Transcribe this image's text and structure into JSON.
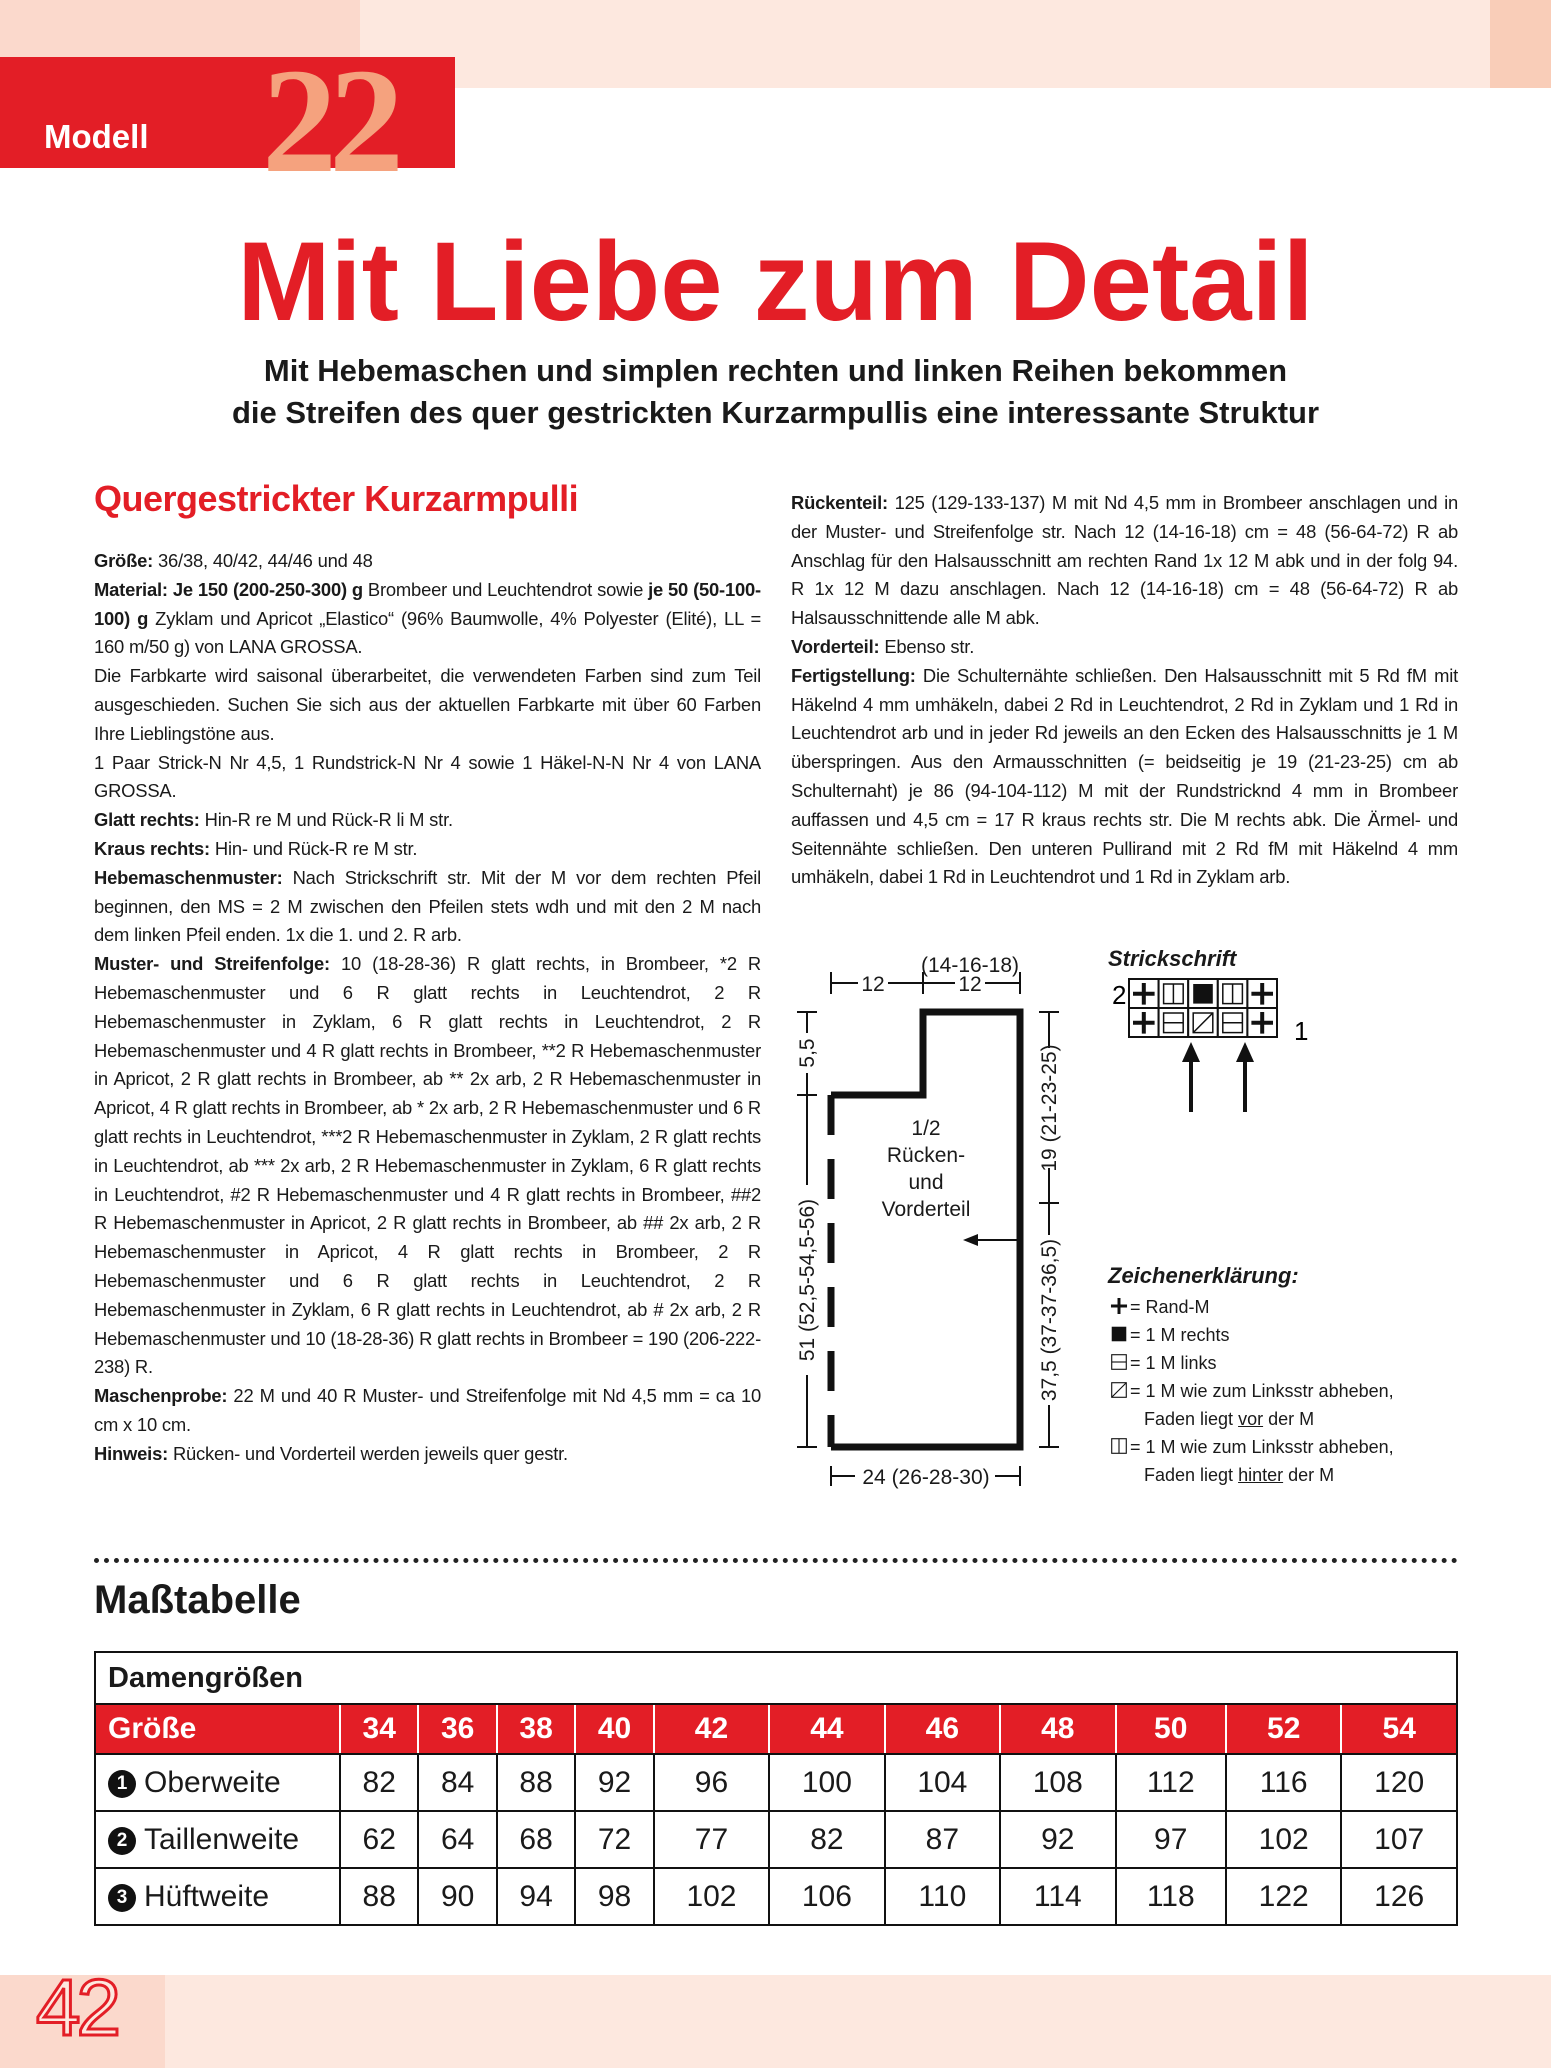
{
  "header": {
    "modell_label": "Modell",
    "modell_number": "22"
  },
  "title": "Mit Liebe zum Detail",
  "subtitle": [
    "Mit Hebemaschen und simplen rechten und linken Reihen bekommen",
    "die Streifen des quer gestrickten Kurzarmpullis eine interessante Struktur"
  ],
  "section_heading": "Quergestrickter Kurzarmpulli",
  "left_column": [
    [
      {
        "b": true,
        "t": "Größe:"
      },
      {
        "b": false,
        "t": " 36/38, 40/42, 44/46 und 48"
      }
    ],
    [
      {
        "b": true,
        "t": "Material: Je 150 (200-250-300) g"
      },
      {
        "b": false,
        "t": " Brombeer und Leuchtendrot sowie "
      },
      {
        "b": true,
        "t": "je 50 (50-100-100) g"
      },
      {
        "b": false,
        "t": " Zyklam und Apricot „Elastico“ (96% Baumwolle, 4% Polyester (Elité), LL = 160 m/50 g) von LANA GROSSA."
      }
    ],
    [
      {
        "b": false,
        "t": "Die Farbkarte wird saisonal überarbeitet, die verwendeten Farben sind zum Teil ausgeschieden. Suchen Sie sich aus der aktuellen Farbkarte mit über 60 Farben Ihre Lieblingstöne aus."
      }
    ],
    [
      {
        "b": false,
        "t": "1 Paar Strick-N Nr 4,5, 1 Rundstrick-N Nr 4 sowie 1 Häkel-N-N Nr 4 von LANA GROSSA."
      }
    ],
    [
      {
        "b": true,
        "t": "Glatt rechts:"
      },
      {
        "b": false,
        "t": " Hin-R re M und Rück-R li M str."
      }
    ],
    [
      {
        "b": true,
        "t": "Kraus rechts:"
      },
      {
        "b": false,
        "t": " Hin- und Rück-R re M str."
      }
    ],
    [
      {
        "b": true,
        "t": "Hebemaschenmuster:"
      },
      {
        "b": false,
        "t": " Nach Strickschrift str. Mit der M vor dem rechten Pfeil beginnen, den MS = 2 M zwischen den Pfeilen stets wdh und mit den 2 M nach dem linken Pfeil enden. 1x die 1. und 2. R arb."
      }
    ],
    [
      {
        "b": true,
        "t": "Muster- und Streifenfolge:"
      },
      {
        "b": false,
        "t": " 10 (18-28-36) R glatt rechts, in Brombeer, *2 R Hebemaschenmuster und 6 R glatt rechts in Leuchtendrot, 2 R Hebemaschenmuster in Zyklam, 6 R glatt rechts in Leuchtendrot, 2 R Hebemaschenmuster und 4 R glatt rechts in Brombeer, **2 R Hebemaschenmuster in Apricot, 2 R glatt rechts in Brombeer, ab ** 2x arb, 2 R Hebemaschenmuster in Apricot, 4 R glatt rechts in Brombeer, ab * 2x arb, 2 R Hebemaschenmuster und 6 R glatt rechts in Leuchtendrot, ***2 R Hebemaschenmuster in Zyklam, 2 R glatt rechts in Leuchtendrot, ab *** 2x arb, 2 R Hebemaschenmuster in Zyklam, 6 R glatt rechts in Leuchtendrot, #2 R Hebemaschenmuster und 4 R glatt rechts in Brombeer, ##2 R Hebemaschenmuster in Apricot, 2 R glatt rechts in Brombeer, ab ## 2x arb, 2 R Hebemaschenmuster in Apricot, 4 R glatt rechts in Brombeer, 2 R Hebemaschenmuster und 6 R glatt rechts in Leuchtendrot, 2 R Hebemaschenmuster in Zyklam, 6 R glatt rechts in Leuchtendrot, ab # 2x arb, 2 R Hebemaschenmuster und 10 (18-28-36) R glatt rechts in Brombeer = 190 (206-222-238) R."
      }
    ],
    [
      {
        "b": true,
        "t": "Maschenprobe:"
      },
      {
        "b": false,
        "t": " 22 M und 40 R Muster- und Streifenfolge mit Nd 4,5 mm = ca 10 cm x 10 cm."
      }
    ],
    [
      {
        "b": true,
        "t": "Hinweis:"
      },
      {
        "b": false,
        "t": " Rücken- und Vorderteil werden jeweils quer gestr."
      }
    ]
  ],
  "right_column": [
    [
      {
        "b": true,
        "t": "Rückenteil:"
      },
      {
        "b": false,
        "t": " 125 (129-133-137) M mit Nd 4,5 mm in Brombeer anschlagen und in der Muster- und Streifenfolge str. Nach 12 (14-16-18) cm = 48 (56-64-72) R ab Anschlag für den Halsausschnitt am rechten Rand 1x 12 M abk und in der folg 94. R 1x 12 M dazu anschlagen. Nach 12 (14-16-18) cm = 48 (56-64-72) R ab Halsausschnittende alle M abk."
      }
    ],
    [
      {
        "b": true,
        "t": "Vorderteil:"
      },
      {
        "b": false,
        "t": " Ebenso str."
      }
    ],
    [
      {
        "b": true,
        "t": "Fertigstellung:"
      },
      {
        "b": false,
        "t": " Die Schulternähte schließen. Den Halsausschnitt mit 5 Rd fM mit Häkelnd 4 mm umhäkeln, dabei 2 Rd in Leuchtendrot, 2 Rd in Zyklam und 1 Rd in Leuchtendrot arb und in jeder Rd jeweils an den Ecken des Halsausschnitts je 1 M überspringen. Aus den Armausschnitten (= beidseitig je 19 (21-23-25) cm ab Schulternaht) je 86 (94-104-112) M mit der Rundstricknd 4 mm in Brombeer auffassen und 4,5 cm = 17 R kraus rechts str. Die M rechts abk. Die Ärmel- und Seitennähte schließen. Den unteren Pullirand mit 2 Rd fM mit Häkelnd 4 mm umhäkeln, dabei 1 Rd in Leuchtendrot und 1 Rd in Zyklam arb."
      }
    ]
  ],
  "schematic": {
    "top_left": "12",
    "top_right": "12",
    "top_right_sizes": "(14-16-18)",
    "neck_depth": "5,5",
    "left_height": "51 (52,5-54,5-56)",
    "armhole": "19 (21-23-25)",
    "side": "37,5 (37-37-36,5)",
    "bottom_width": "24 (26-28-30)",
    "center_label": [
      "1/2",
      "Rücken-",
      "und",
      "Vorderteil"
    ]
  },
  "chart": {
    "title": "Strickschrift",
    "row_labels": [
      "2",
      "1"
    ],
    "row2": [
      "plus",
      "slip-back",
      "knit",
      "slip-back",
      "plus"
    ],
    "row1": [
      "plus",
      "purl",
      "slip-front",
      "purl",
      "plus"
    ]
  },
  "legend": {
    "title": "Zeichenerklärung:",
    "items": [
      {
        "icon": "plus",
        "text": "= Rand-M"
      },
      {
        "icon": "knit",
        "text": "= 1 M rechts"
      },
      {
        "icon": "purl",
        "text": "= 1 M links"
      },
      {
        "icon": "slip-front",
        "text": "= 1 M wie zum Linksstr abheben,",
        "line2a": "Faden liegt ",
        "u": "vor",
        "line2b": " der M"
      },
      {
        "icon": "slip-back",
        "text": "= 1 M wie zum Linksstr abheben,",
        "line2a": "Faden liegt ",
        "u": "hinter",
        "line2b": " der M"
      }
    ]
  },
  "mass": {
    "heading": "Maßtabelle",
    "table_title": "Damengrößen",
    "size_label": "Größe",
    "sizes": [
      "34",
      "36",
      "38",
      "40",
      "42",
      "44",
      "46",
      "48",
      "50",
      "52",
      "54"
    ],
    "rows": [
      {
        "num": "1",
        "label": "Oberweite",
        "values": [
          "82",
          "84",
          "88",
          "92",
          "96",
          "100",
          "104",
          "108",
          "112",
          "116",
          "120"
        ]
      },
      {
        "num": "2",
        "label": "Taillenweite",
        "values": [
          "62",
          "64",
          "68",
          "72",
          "77",
          "82",
          "87",
          "92",
          "97",
          "102",
          "107"
        ]
      },
      {
        "num": "3",
        "label": "Hüftweite",
        "values": [
          "88",
          "90",
          "94",
          "98",
          "102",
          "106",
          "110",
          "114",
          "118",
          "122",
          "126"
        ]
      }
    ]
  },
  "page_number": "42",
  "colors": {
    "accent": "#e31e26",
    "number": "#f5a27e",
    "band": "#fde8df"
  }
}
